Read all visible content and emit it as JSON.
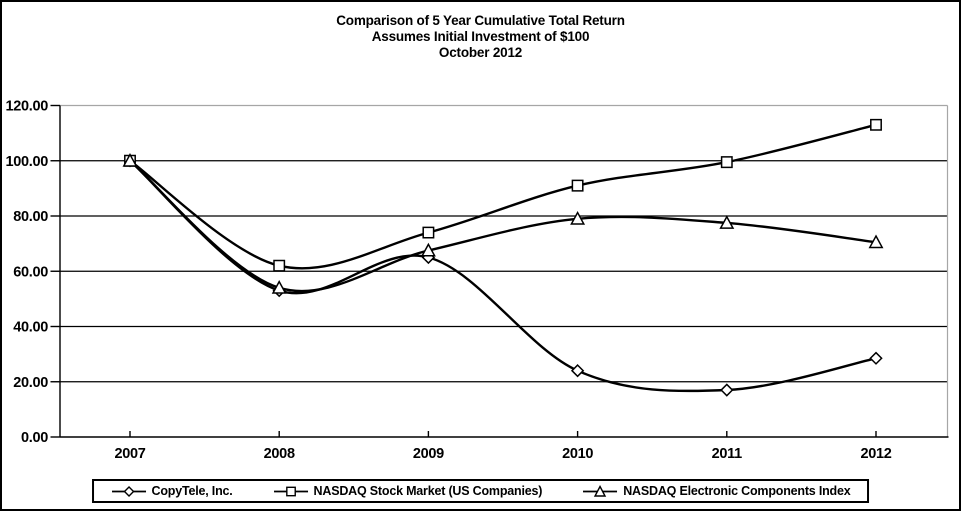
{
  "title": {
    "line1": "Comparison of 5 Year Cumulative Total Return",
    "line2": "Assumes Initial Investment of $100",
    "line3": "October 2012"
  },
  "chart_data": {
    "type": "line",
    "title": "Comparison of 5 Year Cumulative Total Return",
    "subtitle": "Assumes Initial Investment of $100 — October 2012",
    "categories": [
      "2007",
      "2008",
      "2009",
      "2010",
      "2011",
      "2012"
    ],
    "series": [
      {
        "name": "CopyTele, Inc.",
        "marker": "diamond",
        "values": [
          100,
          53,
          65,
          24,
          17,
          28.5
        ]
      },
      {
        "name": "NASDAQ Stock Market (US Companies)",
        "marker": "square",
        "values": [
          100,
          62,
          74,
          91,
          99.5,
          113
        ]
      },
      {
        "name": "NASDAQ Electronic Components Index",
        "marker": "triangle",
        "values": [
          100,
          54,
          67.5,
          79,
          77.5,
          70.5
        ]
      }
    ],
    "ylim": [
      0,
      120
    ],
    "ytick_step": 20,
    "ytick_labels": [
      "0.00",
      "20.00",
      "40.00",
      "60.00",
      "80.00",
      "100.00",
      "120.00"
    ],
    "grid": true,
    "legend_position": "bottom",
    "line_color": "#000000",
    "marker_fill": "#ffffff",
    "frame_gray": "#a6a6a6",
    "background": "#ffffff"
  }
}
